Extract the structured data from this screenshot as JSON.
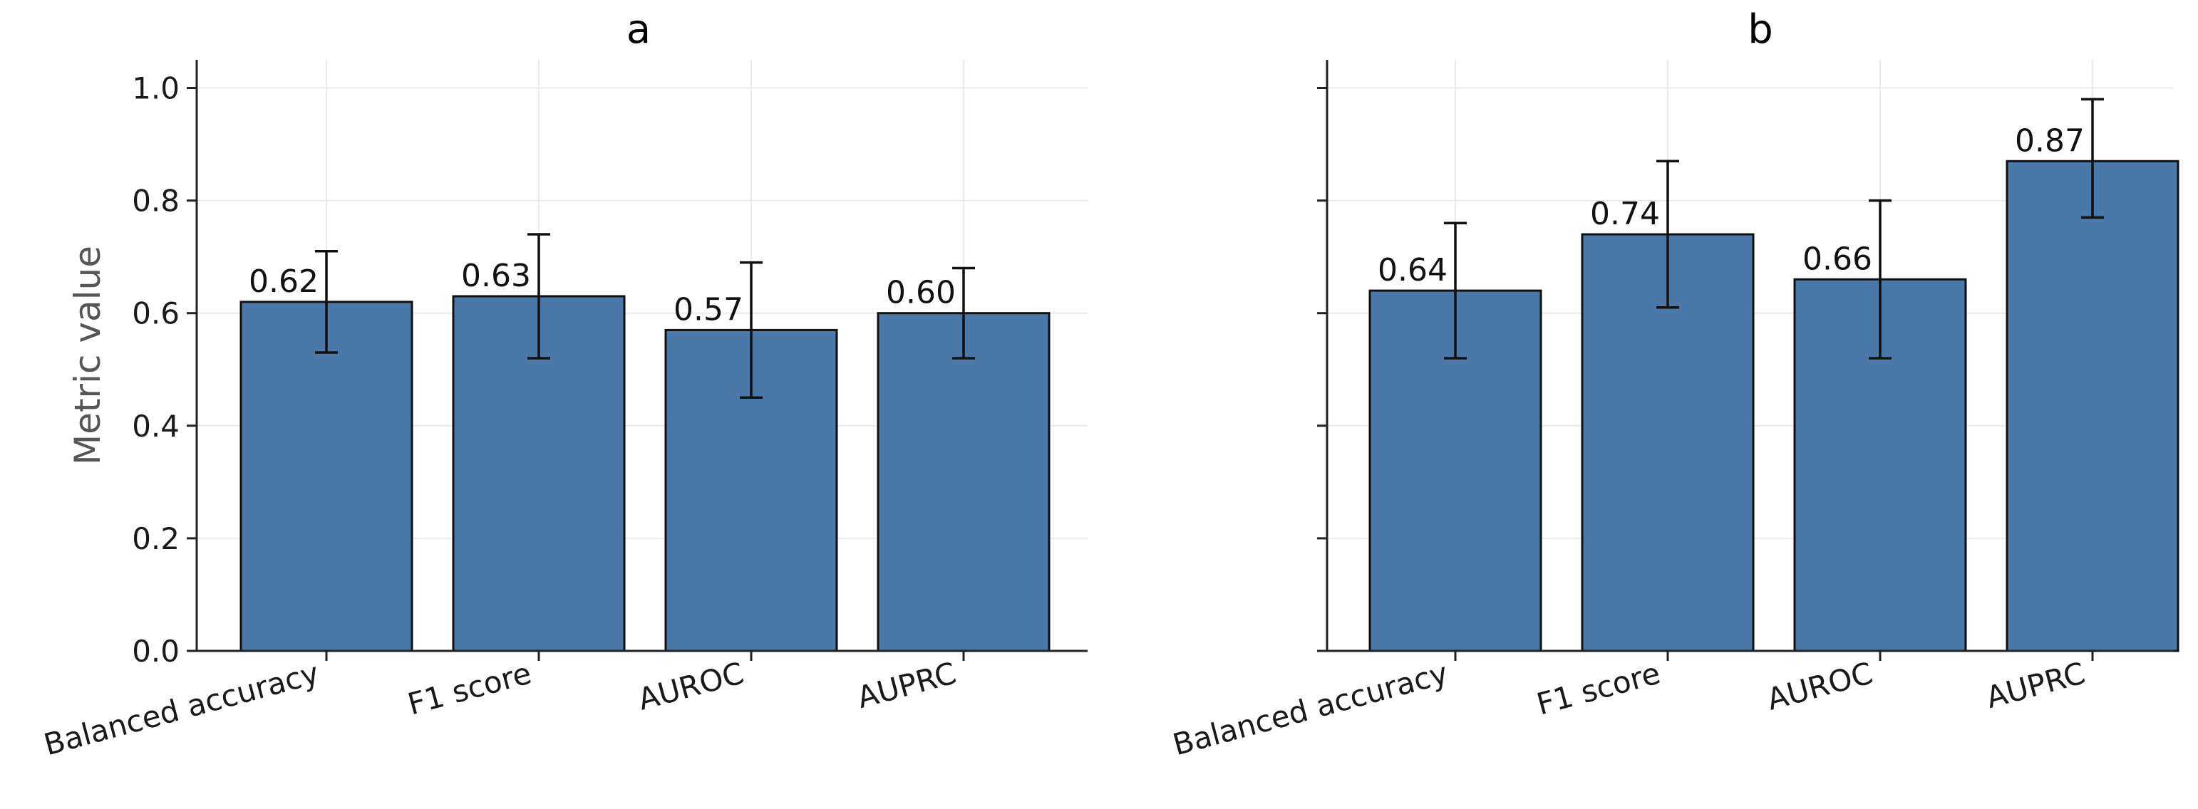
{
  "chart_data": [
    {
      "type": "bar",
      "title": "a",
      "categories": [
        "Balanced accuracy",
        "F1 score",
        "AUROC",
        "AUPRC"
      ],
      "values": [
        0.62,
        0.63,
        0.57,
        0.6
      ],
      "value_labels": [
        "0.62",
        "0.63",
        "0.57",
        "0.60"
      ],
      "error_low": [
        0.53,
        0.52,
        0.45,
        0.52
      ],
      "error_high": [
        0.71,
        0.74,
        0.69,
        0.68
      ],
      "xlabel": "",
      "ylabel": "Metric value",
      "ylim": [
        0,
        1.05
      ],
      "yticks": [
        0.0,
        0.2,
        0.4,
        0.6,
        0.8,
        1.0
      ],
      "ytick_labels": [
        "0.0",
        "0.2",
        "0.4",
        "0.6",
        "0.8",
        "1.0"
      ],
      "grid": true,
      "bar_color": "#4a78a8"
    },
    {
      "type": "bar",
      "title": "b",
      "categories": [
        "Balanced accuracy",
        "F1 score",
        "AUROC",
        "AUPRC"
      ],
      "values": [
        0.64,
        0.74,
        0.66,
        0.87
      ],
      "value_labels": [
        "0.64",
        "0.74",
        "0.66",
        "0.87"
      ],
      "error_low": [
        0.52,
        0.61,
        0.52,
        0.77
      ],
      "error_high": [
        0.76,
        0.87,
        0.8,
        0.98
      ],
      "xlabel": "",
      "ylabel": "",
      "ylim": [
        0,
        1.05
      ],
      "yticks": [
        0.0,
        0.2,
        0.4,
        0.6,
        0.8,
        1.0
      ],
      "ytick_labels": [],
      "grid": true,
      "bar_color": "#4a78a8"
    }
  ]
}
